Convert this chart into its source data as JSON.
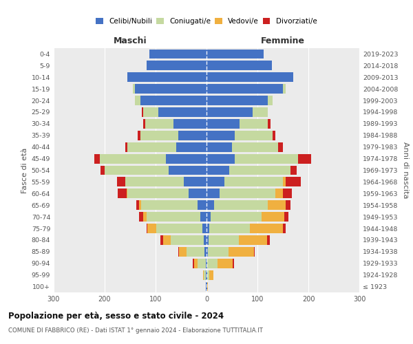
{
  "age_groups": [
    "100+",
    "95-99",
    "90-94",
    "85-89",
    "80-84",
    "75-79",
    "70-74",
    "65-69",
    "60-64",
    "55-59",
    "50-54",
    "45-49",
    "40-44",
    "35-39",
    "30-34",
    "25-29",
    "20-24",
    "15-19",
    "10-14",
    "5-9",
    "0-4"
  ],
  "birth_years": [
    "≤ 1923",
    "1924-1928",
    "1929-1933",
    "1934-1938",
    "1939-1943",
    "1944-1948",
    "1949-1953",
    "1954-1958",
    "1959-1963",
    "1964-1968",
    "1969-1973",
    "1974-1978",
    "1979-1983",
    "1984-1988",
    "1989-1993",
    "1994-1998",
    "1999-2003",
    "2004-2008",
    "2009-2013",
    "2014-2018",
    "2019-2023"
  ],
  "male": {
    "celibi": [
      1,
      1,
      2,
      4,
      5,
      8,
      12,
      18,
      35,
      45,
      75,
      80,
      60,
      55,
      65,
      95,
      130,
      140,
      155,
      118,
      112
    ],
    "coniugati": [
      1,
      4,
      15,
      35,
      65,
      90,
      105,
      110,
      120,
      115,
      125,
      130,
      95,
      75,
      55,
      30,
      10,
      5,
      0,
      0,
      0
    ],
    "vedovi": [
      0,
      2,
      8,
      15,
      15,
      18,
      8,
      5,
      2,
      0,
      0,
      0,
      0,
      0,
      0,
      0,
      0,
      0,
      0,
      0,
      0
    ],
    "divorziati": [
      0,
      0,
      2,
      2,
      5,
      2,
      8,
      5,
      18,
      15,
      8,
      10,
      5,
      5,
      5,
      2,
      0,
      0,
      0,
      0,
      0
    ]
  },
  "female": {
    "nubili": [
      1,
      1,
      2,
      3,
      4,
      5,
      8,
      15,
      25,
      35,
      45,
      55,
      50,
      55,
      65,
      90,
      120,
      150,
      170,
      128,
      112
    ],
    "coniugate": [
      1,
      5,
      20,
      40,
      60,
      80,
      100,
      105,
      110,
      115,
      120,
      125,
      90,
      75,
      55,
      30,
      10,
      5,
      0,
      0,
      0
    ],
    "vedove": [
      1,
      8,
      30,
      50,
      55,
      65,
      45,
      35,
      15,
      5,
      0,
      0,
      0,
      0,
      0,
      0,
      0,
      0,
      0,
      0,
      0
    ],
    "divorziate": [
      0,
      0,
      2,
      2,
      5,
      5,
      8,
      10,
      18,
      30,
      12,
      25,
      10,
      5,
      5,
      0,
      0,
      0,
      0,
      0,
      0
    ]
  },
  "colors": {
    "celibi": "#4472c4",
    "coniugati": "#c5d9a0",
    "vedovi": "#f0b040",
    "divorziati": "#cc2020"
  },
  "xlim": 300,
  "title": "Popolazione per età, sesso e stato civile - 2024",
  "subtitle": "COMUNE DI FABBRICO (RE) - Dati ISTAT 1° gennaio 2024 - Elaborazione TUTTITALIA.IT",
  "ylabel_left": "Fasce di età",
  "ylabel_right": "Anni di nascita",
  "xlabel_maschi": "Maschi",
  "xlabel_femmine": "Femmine",
  "bg_color": "#ffffff",
  "plot_bg_color": "#ebebeb",
  "grid_color": "#ffffff"
}
